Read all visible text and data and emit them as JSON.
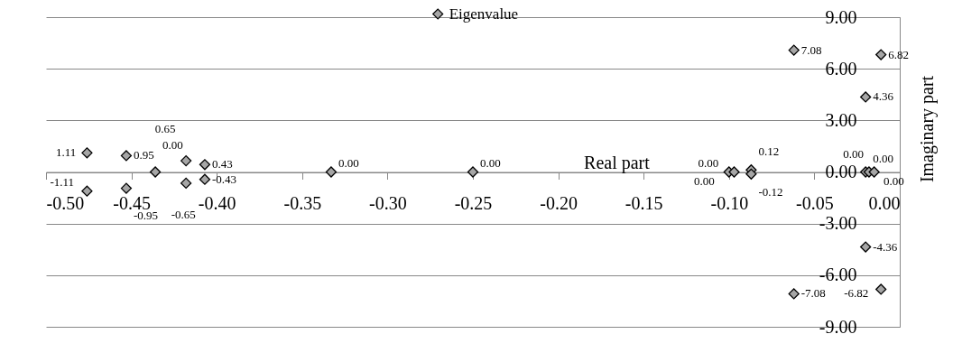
{
  "chart_data": {
    "type": "scatter",
    "xlabel": "Real part",
    "ylabel": "Imaginary part",
    "xlim": [
      -0.5,
      0
    ],
    "ylim": [
      -9,
      9
    ],
    "xticks": [
      {
        "value": -0.5,
        "label": "-0.50"
      },
      {
        "value": -0.45,
        "label": "-0.45"
      },
      {
        "value": -0.4,
        "label": "-0.40"
      },
      {
        "value": -0.35,
        "label": "-0.35"
      },
      {
        "value": -0.3,
        "label": "-0.30"
      },
      {
        "value": -0.25,
        "label": "-0.25"
      },
      {
        "value": -0.2,
        "label": "-0.20"
      },
      {
        "value": -0.15,
        "label": "-0.15"
      },
      {
        "value": -0.1,
        "label": "-0.10"
      },
      {
        "value": -0.05,
        "label": "-0.05"
      },
      {
        "value": 0,
        "label": "0.00"
      }
    ],
    "yticks": [
      {
        "value": -9,
        "label": "-9.00"
      },
      {
        "value": -6,
        "label": "-6.00"
      },
      {
        "value": -3,
        "label": "-3.00"
      },
      {
        "value": 0,
        "label": "0.00"
      },
      {
        "value": 3,
        "label": "3.00"
      },
      {
        "value": 6,
        "label": "6.00"
      },
      {
        "value": 9,
        "label": "9.00"
      }
    ],
    "grid": "y",
    "legend": "top",
    "marker": "diamond",
    "series": [
      {
        "name": "Eigenvalue",
        "color": "#a6a6a6",
        "x": [
          -0.476,
          -0.476,
          -0.453,
          -0.453,
          -0.436,
          -0.418,
          -0.418,
          -0.407,
          -0.407,
          -0.333,
          -0.25,
          -0.1,
          -0.097,
          -0.087,
          -0.087,
          -0.062,
          -0.062,
          -0.02,
          -0.02,
          -0.02,
          -0.018,
          -0.015,
          -0.011,
          -0.011
        ],
        "values": [
          1.11,
          -1.11,
          0.95,
          -0.95,
          0,
          0.65,
          -0.65,
          0.43,
          -0.43,
          0,
          0,
          0,
          0,
          0.12,
          -0.12,
          7.08,
          -7.08,
          4.36,
          -4.36,
          0,
          0,
          0,
          6.82,
          -6.82
        ],
        "value_labels": [
          "1.11",
          "-1.11",
          "0.95",
          "-0.95",
          "0.00",
          "0.65",
          "-0.65",
          "0.43",
          "-0.43",
          "0.00",
          "0.00",
          "0.00",
          "0.00",
          "0.12",
          "-0.12",
          "7.08",
          "-7.08",
          "4.36",
          "-4.36",
          "0.00",
          "0.00",
          "0.00",
          "6.82",
          "-6.82"
        ]
      }
    ]
  }
}
